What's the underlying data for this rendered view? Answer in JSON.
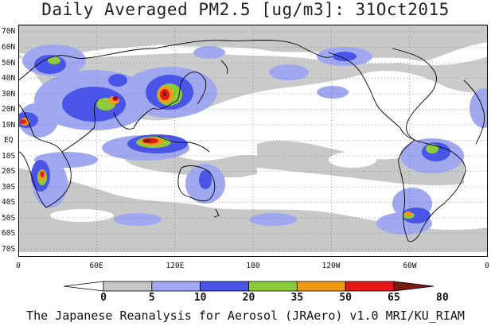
{
  "title": "Daily Averaged PM2.5 [ug/m3]: 31Oct2015",
  "lat_labels": [
    "70N",
    "60N",
    "50N",
    "40N",
    "30N",
    "20N",
    "10N",
    "EQ",
    "10S",
    "20S",
    "30S",
    "40S",
    "50S",
    "60S",
    "70S"
  ],
  "lon_labels": [
    "0",
    "60E",
    "120E",
    "180",
    "120W",
    "60W",
    "0"
  ],
  "colorbar": {
    "ticks": [
      "0",
      "5",
      "10",
      "20",
      "35",
      "50",
      "65",
      "80"
    ],
    "colors": [
      "#ffffff",
      "#c8c8c8",
      "#a0a8f0",
      "#4a55e8",
      "#8ccc3c",
      "#f09a18",
      "#e81818",
      "#7a1a10"
    ]
  },
  "footer": "The Japanese Reanalysis for Aerosol (JRAero) v1.0 MRI/KU_RIAM"
}
